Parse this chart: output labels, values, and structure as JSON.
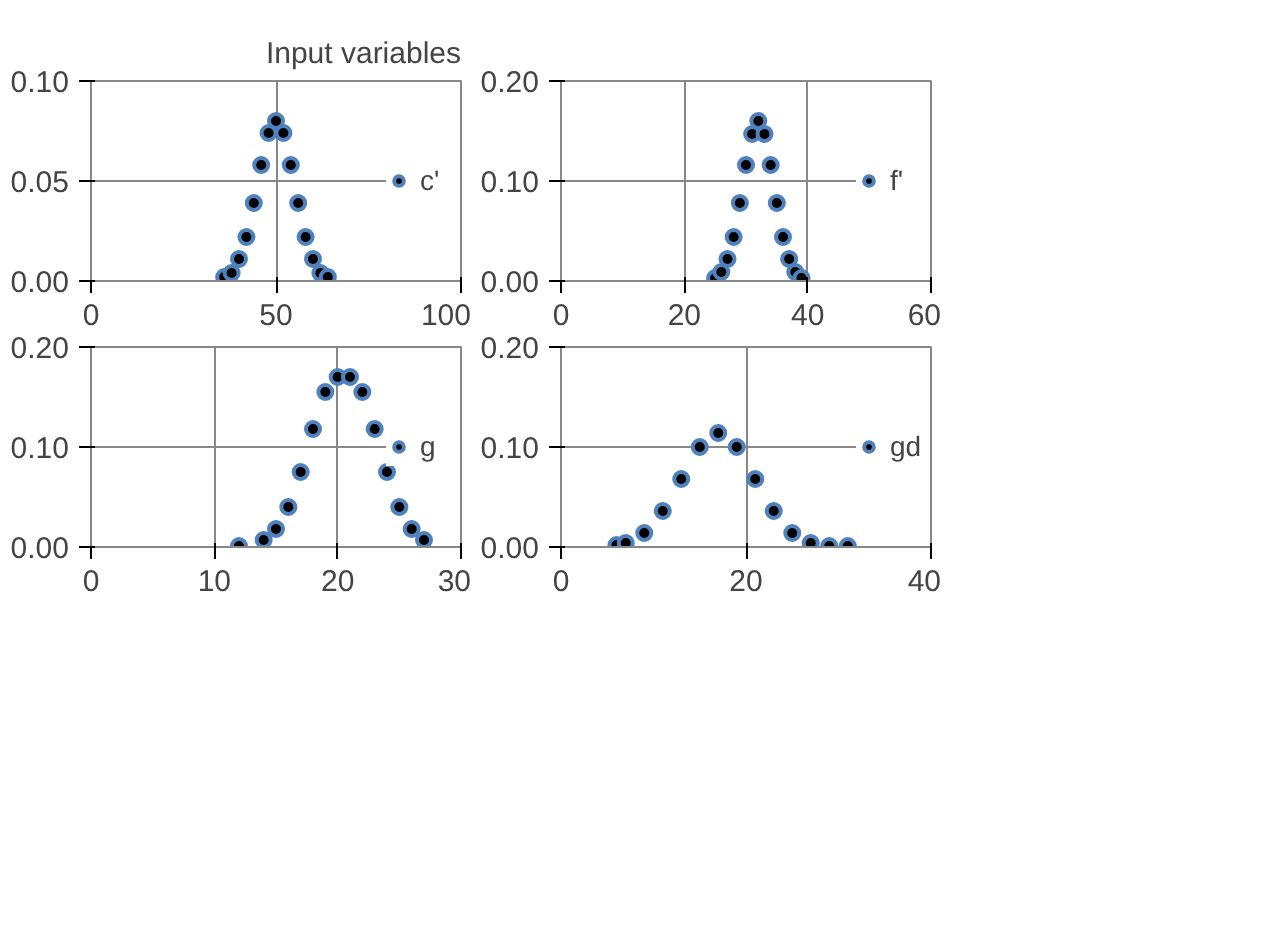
{
  "chart_data": [
    {
      "type": "scatter",
      "title": "Input variables",
      "legend": "right",
      "grid": true,
      "marker": "circle",
      "xlim": [
        0,
        100
      ],
      "xticks": [
        0,
        50,
        100
      ],
      "ylim": [
        0,
        0.1
      ],
      "yticks": [
        {
          "value": 0,
          "label": "0.00"
        },
        {
          "value": 0.05,
          "label": "0.05"
        },
        {
          "value": 0.1,
          "label": "0.10"
        }
      ],
      "series": [
        {
          "name": "c'",
          "color": "#4f81bd",
          "x": [
            36,
            38,
            40,
            42,
            44,
            46,
            48,
            50,
            52,
            54,
            56,
            58,
            60,
            62,
            64
          ],
          "values": [
            0.002,
            0.004,
            0.011,
            0.022,
            0.039,
            0.058,
            0.074,
            0.08,
            0.074,
            0.058,
            0.039,
            0.022,
            0.011,
            0.004,
            0.002
          ]
        }
      ]
    },
    {
      "type": "scatter",
      "legend": "right",
      "grid": true,
      "marker": "circle",
      "xlim": [
        0,
        60
      ],
      "xticks": [
        0,
        20,
        40,
        60
      ],
      "ylim": [
        0,
        0.2
      ],
      "yticks": [
        {
          "value": 0,
          "label": "0.00"
        },
        {
          "value": 0.1,
          "label": "0.10"
        },
        {
          "value": 0.2,
          "label": "0.20"
        }
      ],
      "series": [
        {
          "name": "f'",
          "color": "#4f81bd",
          "x": [
            25,
            26,
            27,
            28,
            29,
            30,
            31,
            32,
            33,
            34,
            35,
            36,
            37,
            38,
            39
          ],
          "values": [
            0.003,
            0.009,
            0.022,
            0.044,
            0.078,
            0.116,
            0.147,
            0.16,
            0.147,
            0.116,
            0.078,
            0.044,
            0.022,
            0.009,
            0.003
          ]
        }
      ]
    },
    {
      "type": "scatter",
      "legend": "right",
      "grid": true,
      "marker": "circle",
      "xlim": [
        0,
        30
      ],
      "xticks": [
        0,
        10,
        20,
        30
      ],
      "ylim": [
        0,
        0.2
      ],
      "yticks": [
        {
          "value": 0,
          "label": "0.00"
        },
        {
          "value": 0.1,
          "label": "0.10"
        },
        {
          "value": 0.2,
          "label": "0.20"
        }
      ],
      "series": [
        {
          "name": "g",
          "color": "#4f81bd",
          "x": [
            12,
            14,
            15,
            16,
            17,
            18,
            19,
            20,
            21,
            22,
            23,
            24,
            25,
            26,
            27
          ],
          "values": [
            0.001,
            0.007,
            0.018,
            0.04,
            0.075,
            0.118,
            0.155,
            0.17,
            0.17,
            0.155,
            0.118,
            0.075,
            0.04,
            0.018,
            0.007
          ]
        }
      ]
    },
    {
      "type": "scatter",
      "legend": "right",
      "grid": true,
      "marker": "circle",
      "xlim": [
        0,
        40
      ],
      "xticks": [
        0,
        20,
        40
      ],
      "ylim": [
        0,
        0.2
      ],
      "yticks": [
        {
          "value": 0,
          "label": "0.00"
        },
        {
          "value": 0.1,
          "label": "0.10"
        },
        {
          "value": 0.2,
          "label": "0.20"
        }
      ],
      "series": [
        {
          "name": "gd",
          "color": "#4f81bd",
          "x": [
            6,
            7,
            9,
            11,
            13,
            15,
            17,
            19,
            21,
            23,
            25,
            27,
            29,
            31
          ],
          "values": [
            0.002,
            0.004,
            0.014,
            0.036,
            0.068,
            0.1,
            0.114,
            0.1,
            0.068,
            0.036,
            0.014,
            0.004,
            0.001,
            0.001
          ]
        }
      ]
    }
  ]
}
